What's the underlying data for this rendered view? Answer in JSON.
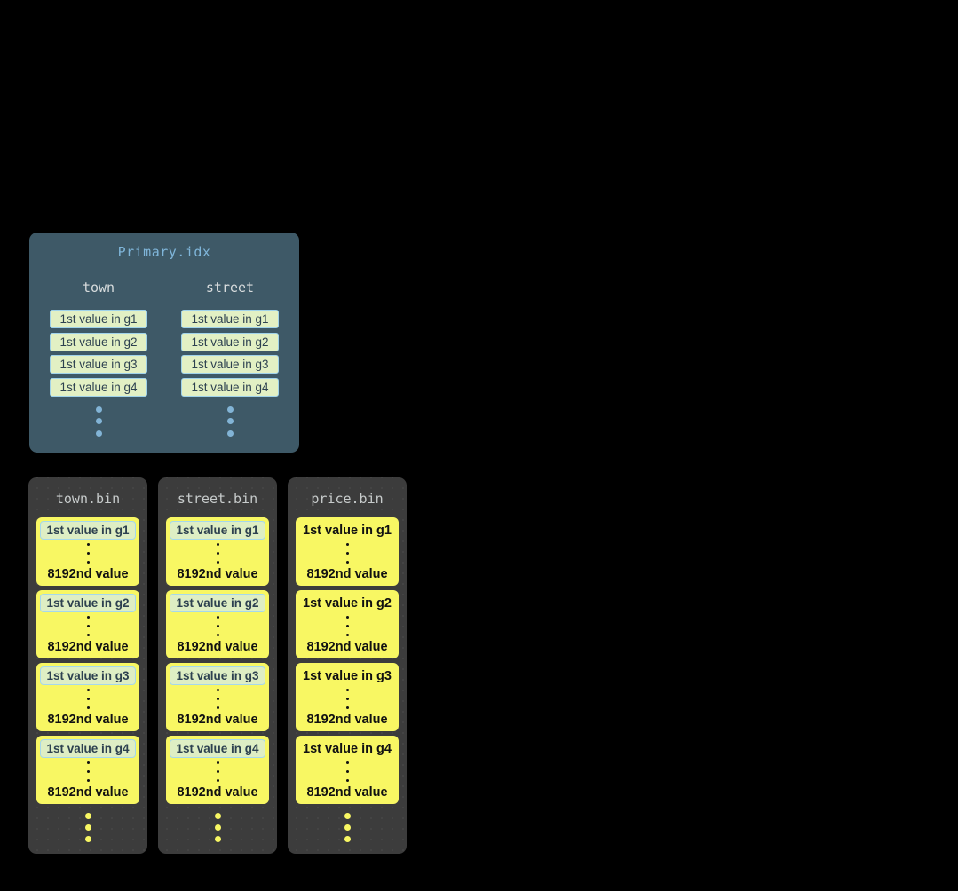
{
  "colors": {
    "page_background": "#000000",
    "primary_box": "#3E5967",
    "primary_title_text": "#7FB5D9",
    "column_header_text": "#D8DCDD",
    "index_cell_bg": "#E2F0C4",
    "index_cell_border": "#9FD2EA",
    "index_cell_text": "#2D4150",
    "blue_ellipsis_dot": "#82B4D6",
    "bin_box": "#3C3C3C",
    "bin_title_text": "#C7CBCB",
    "granule_bg": "#F8F763",
    "granule_text": "#111111",
    "yellow_ellipsis_dot": "#F8F763"
  },
  "primary_idx": {
    "title": "Primary.idx",
    "columns": [
      {
        "name": "town",
        "cells": [
          "1st value in g1",
          "1st value in g2",
          "1st value in g3",
          "1st value in g4"
        ]
      },
      {
        "name": "street",
        "cells": [
          "1st value in g1",
          "1st value in g2",
          "1st value in g3",
          "1st value in g4"
        ]
      }
    ]
  },
  "bins": [
    {
      "title": "town.bin",
      "groups": [
        {
          "first": "1st value in g1",
          "last": "8192nd value"
        },
        {
          "first": "1st value in g2",
          "last": "8192nd value"
        },
        {
          "first": "1st value in g3",
          "last": "8192nd value"
        },
        {
          "first": "1st value in g4",
          "last": "8192nd value"
        }
      ]
    },
    {
      "title": "street.bin",
      "groups": [
        {
          "first": "1st value in g1",
          "last": "8192nd value"
        },
        {
          "first": "1st value in g2",
          "last": "8192nd value"
        },
        {
          "first": "1st value in g3",
          "last": "8192nd value"
        },
        {
          "first": "1st value in g4",
          "last": "8192nd value"
        }
      ]
    },
    {
      "title": "price.bin",
      "groups": [
        {
          "first": "1st value in g1",
          "last": "8192nd value"
        },
        {
          "first": "1st value in g2",
          "last": "8192nd value"
        },
        {
          "first": "1st value in g3",
          "last": "8192nd value"
        },
        {
          "first": "1st value in g4",
          "last": "8192nd value"
        }
      ]
    }
  ]
}
